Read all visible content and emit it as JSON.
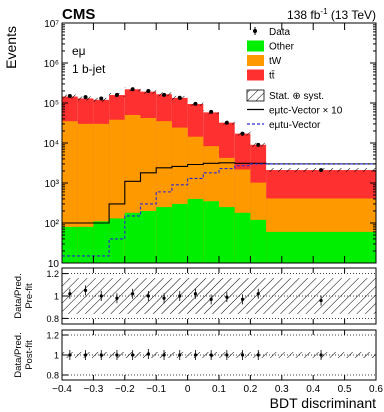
{
  "chart_data": {
    "type": "bar",
    "header": {
      "experiment": "CMS",
      "lumi": "138 fb",
      "lumi_sup": "-1",
      "lumi_tail": " (13 TeV)"
    },
    "channel": [
      "eμ",
      "1 b-jet"
    ],
    "xlabel": "BDT discriminant",
    "ylabel": "Events",
    "x_ticks": [
      "−0.4",
      "−0.3",
      "−0.2",
      "−0.1",
      "0",
      "0.1",
      "0.2",
      "0.3",
      "0.4",
      "0.5",
      "0.6"
    ],
    "x_edges": [
      -0.4,
      -0.35,
      -0.3,
      -0.25,
      -0.2,
      -0.15,
      -0.1,
      -0.05,
      0,
      0.05,
      0.1,
      0.15,
      0.2,
      0.25,
      0.6
    ],
    "ylim_log": [
      10,
      10000000
    ],
    "y_ticks": [
      "10",
      "10²",
      "10³",
      "10⁴",
      "10⁵",
      "10⁶",
      "10⁷"
    ],
    "series": [
      {
        "name": "Other",
        "color": "#00ee00",
        "values": [
          80,
          80,
          110,
          130,
          180,
          200,
          250,
          300,
          400,
          350,
          250,
          180,
          120,
          60
        ]
      },
      {
        "name": "tW",
        "color": "#ff9900",
        "values": [
          35000,
          30000,
          30000,
          38000,
          50000,
          42000,
          35000,
          24000,
          14000,
          8000,
          4000,
          2000,
          900,
          350
        ]
      },
      {
        "name": "tt̄",
        "color": "#ff3030",
        "values": [
          110000,
          100000,
          90000,
          120000,
          170000,
          150000,
          130000,
          110000,
          80000,
          50000,
          28000,
          15000,
          8000,
          1700
        ]
      }
    ],
    "data": {
      "name": "Data",
      "values": [
        150000,
        140000,
        130000,
        160000,
        220000,
        200000,
        160000,
        135000,
        95000,
        60000,
        32000,
        17000,
        9000,
        2100
      ]
    },
    "signals": [
      {
        "name": "eμtc-Vector × 10",
        "style": "solid",
        "color": "#000000",
        "values": [
          100,
          100,
          100,
          300,
          1100,
          1800,
          2400,
          2600,
          2900,
          3100,
          3200,
          3100,
          3100,
          3000
        ]
      },
      {
        "name": "eμtu-Vector",
        "style": "dashed",
        "color": "#2a2ad4",
        "values": [
          15,
          15,
          15,
          40,
          150,
          300,
          600,
          900,
          1300,
          1800,
          2300,
          2700,
          3000,
          3000
        ]
      }
    ],
    "legend_extra": "Stat. ⊕ syst.",
    "ratio_prefit": {
      "ylabel": [
        "Data/Pred.",
        "Pre-fit"
      ],
      "y_ticks": [
        "0.8",
        "1",
        "1.2"
      ],
      "ylim": [
        0.75,
        1.25
      ],
      "values": [
        1.02,
        1.05,
        1.0,
        0.98,
        1.02,
        1.0,
        0.98,
        1.0,
        1.02,
        0.97,
        0.99,
        0.97,
        1.02,
        0.96
      ],
      "band": [
        0.16,
        0.16,
        0.16,
        0.16,
        0.16,
        0.16,
        0.16,
        0.16,
        0.16,
        0.16,
        0.16,
        0.16,
        0.16,
        0.16
      ]
    },
    "ratio_postfit": {
      "ylabel": [
        "Data/Pred.",
        "Post-fit"
      ],
      "y_ticks": [
        "0.8",
        "1",
        "1.2"
      ],
      "ylim": [
        0.75,
        1.25
      ],
      "values": [
        1.0,
        1.0,
        1.0,
        1.0,
        1.0,
        1.01,
        1.0,
        1.0,
        1.0,
        1.0,
        1.0,
        1.0,
        1.0,
        1.0
      ],
      "band": [
        0.03,
        0.03,
        0.03,
        0.03,
        0.03,
        0.03,
        0.03,
        0.03,
        0.03,
        0.03,
        0.03,
        0.03,
        0.03,
        0.03
      ]
    }
  }
}
